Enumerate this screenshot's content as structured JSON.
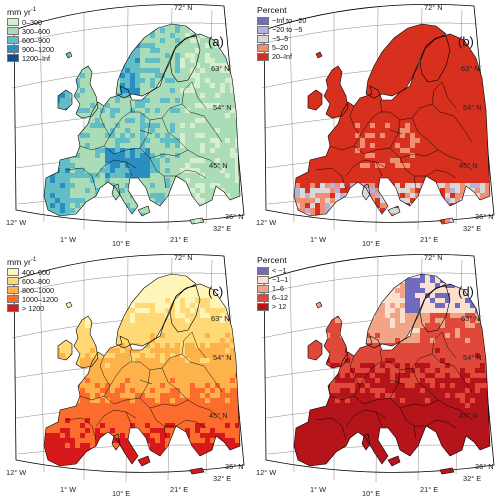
{
  "panels": [
    {
      "label": "(a)",
      "legend_title": "mm yr",
      "legend_title_sup": "-1",
      "legend": [
        {
          "text": "0–300",
          "color": "#d8efcf"
        },
        {
          "text": "300–600",
          "color": "#a9dcb7"
        },
        {
          "text": "600–900",
          "color": "#62bdc6"
        },
        {
          "text": "900–1200",
          "color": "#2a8ec3"
        },
        {
          "text": "1200–Inf",
          "color": "#0b4f94"
        }
      ],
      "map_palette": [
        "#d8efcf",
        "#a9dcb7",
        "#62bdc6",
        "#2a8ec3",
        "#0b4f94"
      ],
      "lat_labels": [
        "72° N",
        "63° N",
        "54° N",
        "45° N",
        "36° N"
      ],
      "lon_labels": [
        "12° W",
        "1° W",
        "10° E",
        "21° E",
        "32° E"
      ]
    },
    {
      "label": "(b)",
      "legend_title": "Percent",
      "legend": [
        {
          "text": "−Inf to −20",
          "color": "#6f6cc0"
        },
        {
          "text": "−20 to −5",
          "color": "#b3b2df"
        },
        {
          "text": "−5–5",
          "color": "#d9d9d9"
        },
        {
          "text": "5–20",
          "color": "#f08f73"
        },
        {
          "text": "20–Inf",
          "color": "#d7301f"
        }
      ],
      "map_palette": [
        "#d7301f",
        "#d7301f",
        "#d7301f",
        "#f08f73",
        "#d9d9d9",
        "#b3b2df",
        "#6f6cc0"
      ],
      "lat_labels": [
        "72° N",
        "63° N",
        "54° N",
        "45° N",
        "36° N"
      ],
      "lon_labels": [
        "12° W",
        "1° W",
        "10° E",
        "21° E",
        "32° E"
      ]
    },
    {
      "label": "(c)",
      "legend_title": "mm yr",
      "legend_title_sup": "-1",
      "legend": [
        {
          "text": "400–600",
          "color": "#fff5b8"
        },
        {
          "text": "600–800",
          "color": "#fed976"
        },
        {
          "text": "800–1000",
          "color": "#feb24c"
        },
        {
          "text": "1000–1200",
          "color": "#fc6c2d"
        },
        {
          "text": "> 1200",
          "color": "#d7191c"
        }
      ],
      "map_palette": [
        "#fff5b8",
        "#fed976",
        "#feb24c",
        "#fc6c2d",
        "#d7191c"
      ],
      "lat_labels": [
        "72° N",
        "63° N",
        "54° N",
        "45° N",
        "36° N"
      ],
      "lon_labels": [
        "12° W",
        "1° W",
        "10° E",
        "21° E",
        "32° E"
      ]
    },
    {
      "label": "(d)",
      "legend_title": "Percent",
      "legend": [
        {
          "text": "< −1",
          "color": "#6f6cc0"
        },
        {
          "text": "−1–1",
          "color": "#fbe0d0"
        },
        {
          "text": "1–6",
          "color": "#f2a486"
        },
        {
          "text": "6–12",
          "color": "#e0493a"
        },
        {
          "text": "> 12",
          "color": "#b5141a"
        }
      ],
      "map_palette": [
        "#6f6cc0",
        "#fbe0d0",
        "#f2a486",
        "#e0493a",
        "#b5141a"
      ],
      "lat_labels": [
        "72° N",
        "63° N",
        "54° N",
        "45° N",
        "36° N"
      ],
      "lon_labels": [
        "12° W",
        "1° W",
        "10° E",
        "21° E",
        "32° E"
      ]
    }
  ]
}
